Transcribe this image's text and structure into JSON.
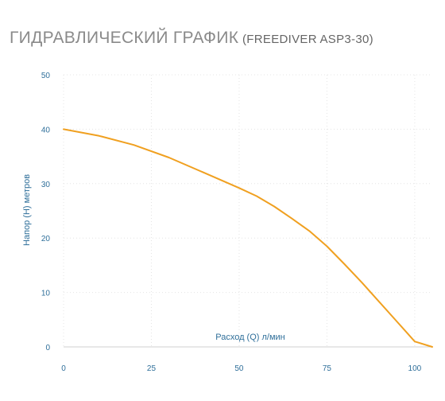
{
  "header": {
    "title": "Гидравлический график",
    "subtitle": "(FREEDIVER ASP3-30)"
  },
  "colors": {
    "line": "#f0a020",
    "axis_text": "#2f6f9a",
    "grid": "#e4e4e4",
    "title": "#8a8a8a"
  },
  "chart_data": {
    "type": "line",
    "title": "Гидравлический график (FREEDIVER ASP3-30)",
    "xlabel": "Расход (Q) л/мин",
    "ylabel": "Напор (H) метров",
    "xlim": [
      0,
      105
    ],
    "ylim": [
      0,
      50
    ],
    "x_ticks": [
      0,
      25,
      50,
      75,
      100
    ],
    "y_ticks": [
      0,
      10,
      20,
      30,
      40,
      50
    ],
    "grid": "dotted",
    "series": [
      {
        "x": [
          0,
          10,
          20,
          30,
          40,
          50,
          55,
          60,
          65,
          70,
          75,
          80,
          85,
          90,
          95,
          100,
          105
        ],
        "values": [
          40,
          38.8,
          37.1,
          34.8,
          32,
          29.2,
          27.7,
          25.8,
          23.6,
          21.3,
          18.5,
          15.2,
          11.8,
          8.2,
          4.6,
          1.0,
          0
        ]
      }
    ]
  }
}
